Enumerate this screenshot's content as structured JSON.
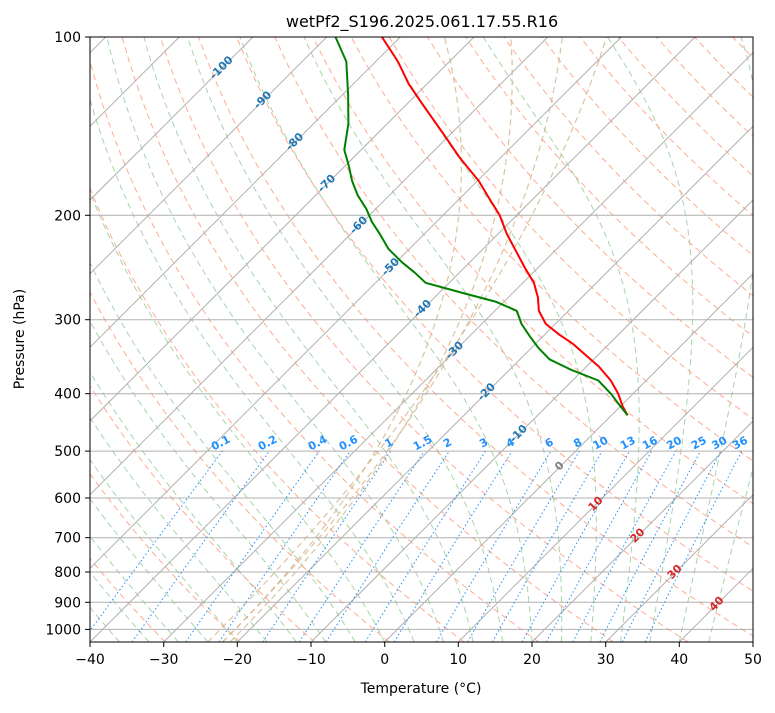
{
  "chart_data": {
    "type": "line",
    "title": "wetPf2_S196.2025.061.17.55.R16",
    "xlabel": "Temperature (°C)",
    "ylabel": "Pressure (hPa)",
    "xlim": [
      -40,
      50
    ],
    "ylim": [
      1050,
      100
    ],
    "y_scale": "log",
    "skew": true,
    "grid": true,
    "x_ticks": [
      -40,
      -30,
      -20,
      -10,
      0,
      10,
      20,
      30,
      40,
      50
    ],
    "y_ticks": [
      1000,
      900,
      800,
      700,
      600,
      500,
      400,
      300,
      200,
      100
    ],
    "isotherm_labels": [
      -100,
      -90,
      -80,
      -70,
      -60,
      -50,
      -40,
      -30,
      -20,
      -10,
      0,
      10,
      20,
      30,
      40
    ],
    "mixing_ratio_labels": [
      "0.1",
      "0.2",
      "0.4",
      "0.6",
      "1",
      "1.5",
      "2",
      "3",
      "4",
      "6",
      "8",
      "10",
      "13",
      "16",
      "20",
      "25",
      "30",
      "36"
    ],
    "mixing_ratio_values": [
      0.1,
      0.2,
      0.4,
      0.6,
      1,
      1.5,
      2,
      3,
      4,
      6,
      8,
      10,
      13,
      16,
      20,
      25,
      30,
      36
    ],
    "series": [
      {
        "name": "",
        "color": "#ff0000",
        "points": [
          {
            "p": 435,
            "t": 2.2
          },
          {
            "p": 420,
            "t": 0.3
          },
          {
            "p": 400,
            "t": -2.0
          },
          {
            "p": 380,
            "t": -4.8
          },
          {
            "p": 360,
            "t": -8.3
          },
          {
            "p": 345,
            "t": -11.5
          },
          {
            "p": 330,
            "t": -14.8
          },
          {
            "p": 318,
            "t": -18.0
          },
          {
            "p": 305,
            "t": -21.3
          },
          {
            "p": 290,
            "t": -24.0
          },
          {
            "p": 275,
            "t": -26.0
          },
          {
            "p": 260,
            "t": -28.5
          },
          {
            "p": 245,
            "t": -31.8
          },
          {
            "p": 230,
            "t": -35.2
          },
          {
            "p": 215,
            "t": -38.8
          },
          {
            "p": 200,
            "t": -42.3
          },
          {
            "p": 188,
            "t": -45.8
          },
          {
            "p": 175,
            "t": -49.8
          },
          {
            "p": 160,
            "t": -55.5
          },
          {
            "p": 145,
            "t": -61.3
          },
          {
            "p": 130,
            "t": -67.8
          },
          {
            "p": 120,
            "t": -72.5
          },
          {
            "p": 110,
            "t": -77.0
          },
          {
            "p": 100,
            "t": -82.5
          }
        ]
      },
      {
        "name": "",
        "color": "#008000",
        "points": [
          {
            "p": 435,
            "t": 2.2
          },
          {
            "p": 420,
            "t": 0.0
          },
          {
            "p": 400,
            "t": -3.0
          },
          {
            "p": 380,
            "t": -6.5
          },
          {
            "p": 365,
            "t": -11.5
          },
          {
            "p": 350,
            "t": -16.0
          },
          {
            "p": 335,
            "t": -19.0
          },
          {
            "p": 320,
            "t": -21.8
          },
          {
            "p": 305,
            "t": -24.6
          },
          {
            "p": 290,
            "t": -27.0
          },
          {
            "p": 280,
            "t": -31.0
          },
          {
            "p": 270,
            "t": -37.0
          },
          {
            "p": 260,
            "t": -43.2
          },
          {
            "p": 250,
            "t": -46.0
          },
          {
            "p": 240,
            "t": -49.2
          },
          {
            "p": 228,
            "t": -52.8
          },
          {
            "p": 216,
            "t": -55.8
          },
          {
            "p": 205,
            "t": -58.8
          },
          {
            "p": 195,
            "t": -61.3
          },
          {
            "p": 185,
            "t": -64.3
          },
          {
            "p": 175,
            "t": -67.0
          },
          {
            "p": 165,
            "t": -69.5
          },
          {
            "p": 155,
            "t": -72.3
          },
          {
            "p": 140,
            "t": -75.3
          },
          {
            "p": 125,
            "t": -79.3
          },
          {
            "p": 110,
            "t": -84.0
          },
          {
            "p": 100,
            "t": -88.8
          }
        ]
      }
    ]
  },
  "colors": {
    "grid": "#b0b0b0",
    "dry_adiabat": "#ffab91",
    "moist_adiabat": "#a5d6a7",
    "mixing_ratio": "#1e90ff",
    "isotherm_label_cold": "#1f77b4",
    "isotherm_label_warm": "#d62728",
    "isotherm_label_zero": "#808080",
    "stability_curve": "#d2b48c"
  }
}
